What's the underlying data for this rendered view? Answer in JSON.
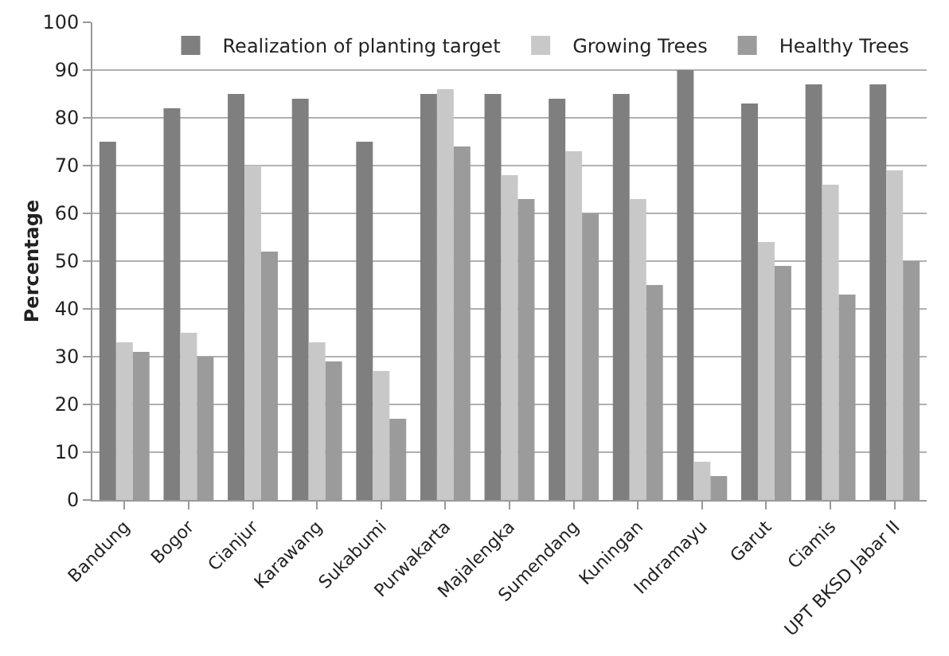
{
  "chart_data": {
    "type": "bar",
    "ylabel": "Percentage",
    "categories": [
      "Bandung",
      "Bogor",
      "Cianjur",
      "Karawang",
      "Sukabumi",
      "Purwakarta",
      "Majalengka",
      "Sumendang",
      "Kuningan",
      "Indramayu",
      "Garut",
      "Ciamis",
      "UPT BKSD Jabar II"
    ],
    "series": [
      {
        "name": "Realization of planting target",
        "color": "#7f7f7f",
        "values": [
          75,
          82,
          85,
          84,
          75,
          85,
          85,
          84,
          85,
          90,
          83,
          87,
          87
        ]
      },
      {
        "name": "Growing Trees",
        "color": "#c8c8c8",
        "values": [
          33,
          35,
          70,
          33,
          27,
          86,
          68,
          73,
          63,
          8,
          54,
          66,
          69
        ]
      },
      {
        "name": "Healthy Trees",
        "color": "#9b9b9b",
        "values": [
          31,
          30,
          52,
          29,
          17,
          74,
          63,
          60,
          45,
          5,
          49,
          43,
          50
        ]
      }
    ],
    "ylim": [
      0,
      100
    ],
    "yticks": [
      0,
      10,
      20,
      30,
      40,
      50,
      60,
      70,
      80,
      90,
      100
    ],
    "grid": "y",
    "legend": "top right"
  }
}
